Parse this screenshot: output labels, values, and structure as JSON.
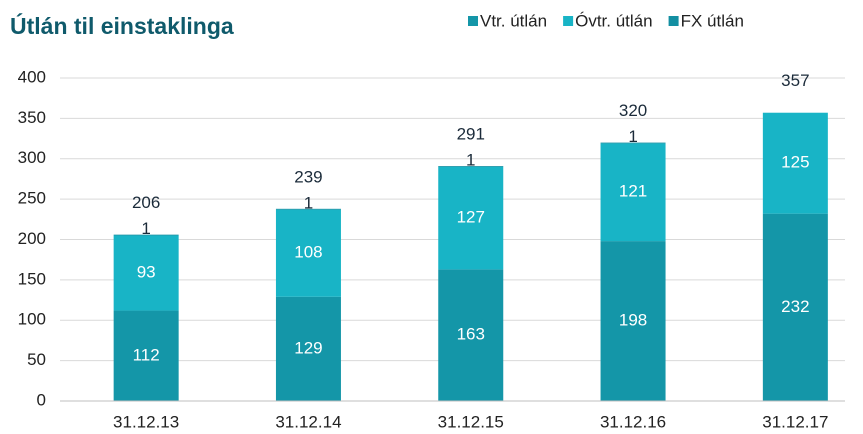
{
  "chart_data": {
    "type": "stacked_bar",
    "title": "Útlán til einstaklinga",
    "categories": [
      "31.12.13",
      "31.12.14",
      "31.12.15",
      "31.12.16",
      "31.12.17"
    ],
    "series": [
      {
        "name": "Vtr. útlán",
        "color": "#1496a8",
        "values": [
          112,
          129,
          163,
          198,
          232
        ]
      },
      {
        "name": "Óvtr. útlán",
        "color": "#18b4c6",
        "values": [
          93,
          108,
          127,
          121,
          125
        ]
      },
      {
        "name": "FX útlán",
        "color": "#138fa2",
        "values": [
          1,
          1,
          1,
          1,
          0
        ],
        "value_labels": [
          "1",
          "1",
          "1",
          "1",
          null
        ]
      }
    ],
    "totals": [
      "206",
      "239",
      "291",
      "320",
      "357"
    ],
    "ylim": [
      0,
      400
    ],
    "yticks": [
      0,
      50,
      100,
      150,
      200,
      250,
      300,
      350,
      400
    ],
    "grid": true,
    "legend": "top-right"
  }
}
